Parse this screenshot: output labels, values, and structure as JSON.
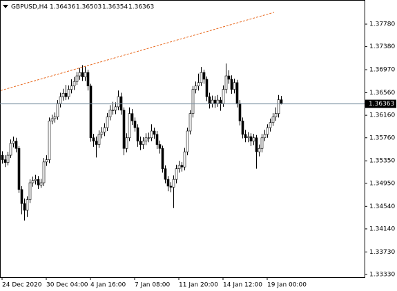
{
  "chart_data": {
    "type": "candlestick",
    "symbol": "GBPUSD,H4",
    "categories": [
      "24 Dec 2020",
      null,
      null,
      null,
      null,
      null,
      null,
      null,
      null,
      null,
      null,
      null,
      null,
      null,
      null,
      null,
      "30 Dec 04:00",
      null,
      null,
      null,
      null,
      null,
      null,
      null,
      null,
      null,
      null,
      null,
      null,
      null,
      null,
      null,
      "4 Jan 16:00",
      null,
      null,
      null,
      null,
      null,
      null,
      null,
      null,
      null,
      null,
      null,
      null,
      null,
      null,
      null,
      "7 Jan 08:00",
      null,
      null,
      null,
      null,
      null,
      null,
      null,
      null,
      null,
      null,
      null,
      null,
      null,
      null,
      null,
      "11 Jan 20:00",
      null,
      null,
      null,
      null,
      null,
      null,
      null,
      null,
      null,
      null,
      null,
      null,
      null,
      null,
      null,
      "14 Jan 12:00",
      null,
      null,
      null,
      null,
      null,
      null,
      null,
      null,
      null,
      null,
      null,
      null,
      null,
      null,
      null,
      "19 Jan 00:00",
      null,
      null,
      null,
      null,
      null
    ],
    "open": [
      1.3545,
      1.3537,
      1.3532,
      1.3545,
      1.3566,
      1.357,
      1.3557,
      1.3484,
      1.3459,
      1.3447,
      1.3466,
      1.3496,
      1.35,
      1.3502,
      1.3492,
      1.3496,
      1.3533,
      1.3537,
      1.3606,
      1.361,
      1.3613,
      1.3637,
      1.3649,
      1.3655,
      1.3649,
      1.3662,
      1.3668,
      1.3676,
      1.3686,
      1.3692,
      1.3684,
      1.3692,
      1.3668,
      1.3576,
      1.357,
      1.3564,
      1.3582,
      1.3586,
      1.3594,
      1.3613,
      1.3625,
      1.3625,
      1.3631,
      1.3649,
      1.3625,
      1.3557,
      1.3576,
      1.3619,
      1.3606,
      1.3594,
      1.357,
      1.3564,
      1.357,
      1.3576,
      1.3576,
      1.3588,
      1.3582,
      1.3564,
      1.3557,
      1.3521,
      1.3502,
      1.349,
      1.3488,
      1.3502,
      1.3521,
      1.3527,
      1.3524,
      1.3551,
      1.3588,
      1.3619,
      1.3662,
      1.3668,
      1.3674,
      1.3692,
      1.368,
      1.3649,
      1.3637,
      1.3643,
      1.3637,
      1.3643,
      1.3637,
      1.3662,
      1.3686,
      1.368,
      1.3662,
      1.3674,
      1.3637,
      1.3606,
      1.3582,
      1.3576,
      1.3578,
      1.357,
      1.3576,
      1.3551,
      1.3557,
      1.3576,
      1.3582,
      1.3594,
      1.3603,
      1.3613,
      1.3619,
      1.36436
    ],
    "high": [
      1.3552,
      1.3545,
      1.3551,
      1.3573,
      1.3578,
      1.3576,
      1.3561,
      1.349,
      1.3468,
      1.3472,
      1.3502,
      1.3507,
      1.351,
      1.3508,
      1.3503,
      1.354,
      1.3545,
      1.3612,
      1.3617,
      1.3621,
      1.3643,
      1.3656,
      1.3663,
      1.367,
      1.3669,
      1.368,
      1.3684,
      1.3693,
      1.37,
      1.3705,
      1.3703,
      1.3697,
      1.3672,
      1.3583,
      1.3578,
      1.3589,
      1.3595,
      1.3602,
      1.362,
      1.3634,
      1.364,
      1.3639,
      1.366,
      1.3656,
      1.363,
      1.3584,
      1.363,
      1.3627,
      1.3612,
      1.36,
      1.3578,
      1.3577,
      1.3584,
      1.3585,
      1.36,
      1.3594,
      1.3588,
      1.3571,
      1.3562,
      1.3527,
      1.3508,
      1.3497,
      1.3509,
      1.3528,
      1.3535,
      1.3533,
      1.3558,
      1.3594,
      1.3625,
      1.3668,
      1.3676,
      1.369,
      1.3702,
      1.3697,
      1.3685,
      1.3656,
      1.3651,
      1.365,
      1.3652,
      1.3648,
      1.3669,
      1.3708,
      1.3696,
      1.3687,
      1.3681,
      1.3679,
      1.3643,
      1.3612,
      1.359,
      1.3586,
      1.3584,
      1.3583,
      1.3581,
      1.3564,
      1.3583,
      1.359,
      1.36,
      1.361,
      1.362,
      1.363,
      1.3652,
      1.36503
    ],
    "low": [
      1.353,
      1.3524,
      1.3527,
      1.354,
      1.3559,
      1.355,
      1.3478,
      1.344,
      1.3429,
      1.3435,
      1.346,
      1.3489,
      1.3493,
      1.3485,
      1.3487,
      1.349,
      1.3526,
      1.3531,
      1.36,
      1.3603,
      1.3608,
      1.363,
      1.3642,
      1.3643,
      1.3644,
      1.3655,
      1.3661,
      1.367,
      1.3679,
      1.3677,
      1.3677,
      1.366,
      1.3569,
      1.356,
      1.3541,
      1.3558,
      1.3575,
      1.3579,
      1.3588,
      1.3607,
      1.3617,
      1.3618,
      1.3625,
      1.3617,
      1.3545,
      1.355,
      1.357,
      1.3599,
      1.3587,
      1.356,
      1.3554,
      1.3556,
      1.3563,
      1.3568,
      1.357,
      1.3574,
      1.3556,
      1.3548,
      1.3514,
      1.3495,
      1.3481,
      1.3479,
      1.3451,
      1.3495,
      1.3514,
      1.3516,
      1.3518,
      1.3545,
      1.3582,
      1.3612,
      1.3655,
      1.366,
      1.3668,
      1.3672,
      1.3641,
      1.3628,
      1.363,
      1.3629,
      1.3631,
      1.3624,
      1.3631,
      1.3655,
      1.3672,
      1.3654,
      1.3655,
      1.363,
      1.3598,
      1.3575,
      1.3568,
      1.3568,
      1.3561,
      1.3563,
      1.3521,
      1.3543,
      1.355,
      1.357,
      1.3576,
      1.3587,
      1.3597,
      1.3606,
      1.3612,
      1.36354
    ],
    "close": [
      1.3537,
      1.3532,
      1.3545,
      1.3566,
      1.357,
      1.3557,
      1.3484,
      1.3459,
      1.3447,
      1.3466,
      1.3496,
      1.35,
      1.3502,
      1.3492,
      1.3496,
      1.3533,
      1.3537,
      1.3606,
      1.361,
      1.3613,
      1.3637,
      1.3649,
      1.3655,
      1.3649,
      1.3662,
      1.3668,
      1.3676,
      1.3686,
      1.3692,
      1.3684,
      1.3692,
      1.3668,
      1.3576,
      1.357,
      1.3564,
      1.3582,
      1.3586,
      1.3594,
      1.3613,
      1.3625,
      1.3625,
      1.3631,
      1.3649,
      1.3625,
      1.3557,
      1.3576,
      1.3619,
      1.3606,
      1.3594,
      1.357,
      1.3564,
      1.357,
      1.3576,
      1.3576,
      1.3588,
      1.3582,
      1.3564,
      1.3557,
      1.3521,
      1.3502,
      1.349,
      1.3488,
      1.3502,
      1.3521,
      1.3527,
      1.3524,
      1.3551,
      1.3588,
      1.3619,
      1.3662,
      1.3668,
      1.3674,
      1.3692,
      1.368,
      1.3649,
      1.3637,
      1.3643,
      1.3637,
      1.3643,
      1.3637,
      1.3662,
      1.3686,
      1.368,
      1.3662,
      1.3674,
      1.3637,
      1.3606,
      1.3582,
      1.3576,
      1.3578,
      1.357,
      1.3576,
      1.3551,
      1.3557,
      1.3576,
      1.3582,
      1.3594,
      1.3603,
      1.3613,
      1.3619,
      1.36436,
      1.36363
    ],
    "up_color": "#ffffff",
    "down_color": "#000000",
    "wick_color": "#000000",
    "ylim": [
      1.33281,
      1.38209
    ],
    "yticks": [
      {
        "value": 1.3778,
        "label": "1.37780"
      },
      {
        "value": 1.3738,
        "label": "1.37380"
      },
      {
        "value": 1.3697,
        "label": "1.36970"
      },
      {
        "value": 1.3656,
        "label": "1.36560"
      },
      {
        "value": 1.3616,
        "label": "1.36160"
      },
      {
        "value": 1.3576,
        "label": "1.35760"
      },
      {
        "value": 1.3535,
        "label": "1.35350"
      },
      {
        "value": 1.3495,
        "label": "1.34950"
      },
      {
        "value": 1.3454,
        "label": "1.34540"
      },
      {
        "value": 1.3414,
        "label": "1.34140"
      },
      {
        "value": 1.3373,
        "label": "1.33730"
      },
      {
        "value": 1.3333,
        "label": "1.33330"
      }
    ],
    "last_price": {
      "value": 1.36363,
      "label": "1.36363",
      "color": "#7a8fa0"
    },
    "trendline": {
      "from": [
        -0.5,
        1.366
      ],
      "to": [
        98.5,
        1.3799
      ],
      "color": "#e8661a"
    }
  }
}
